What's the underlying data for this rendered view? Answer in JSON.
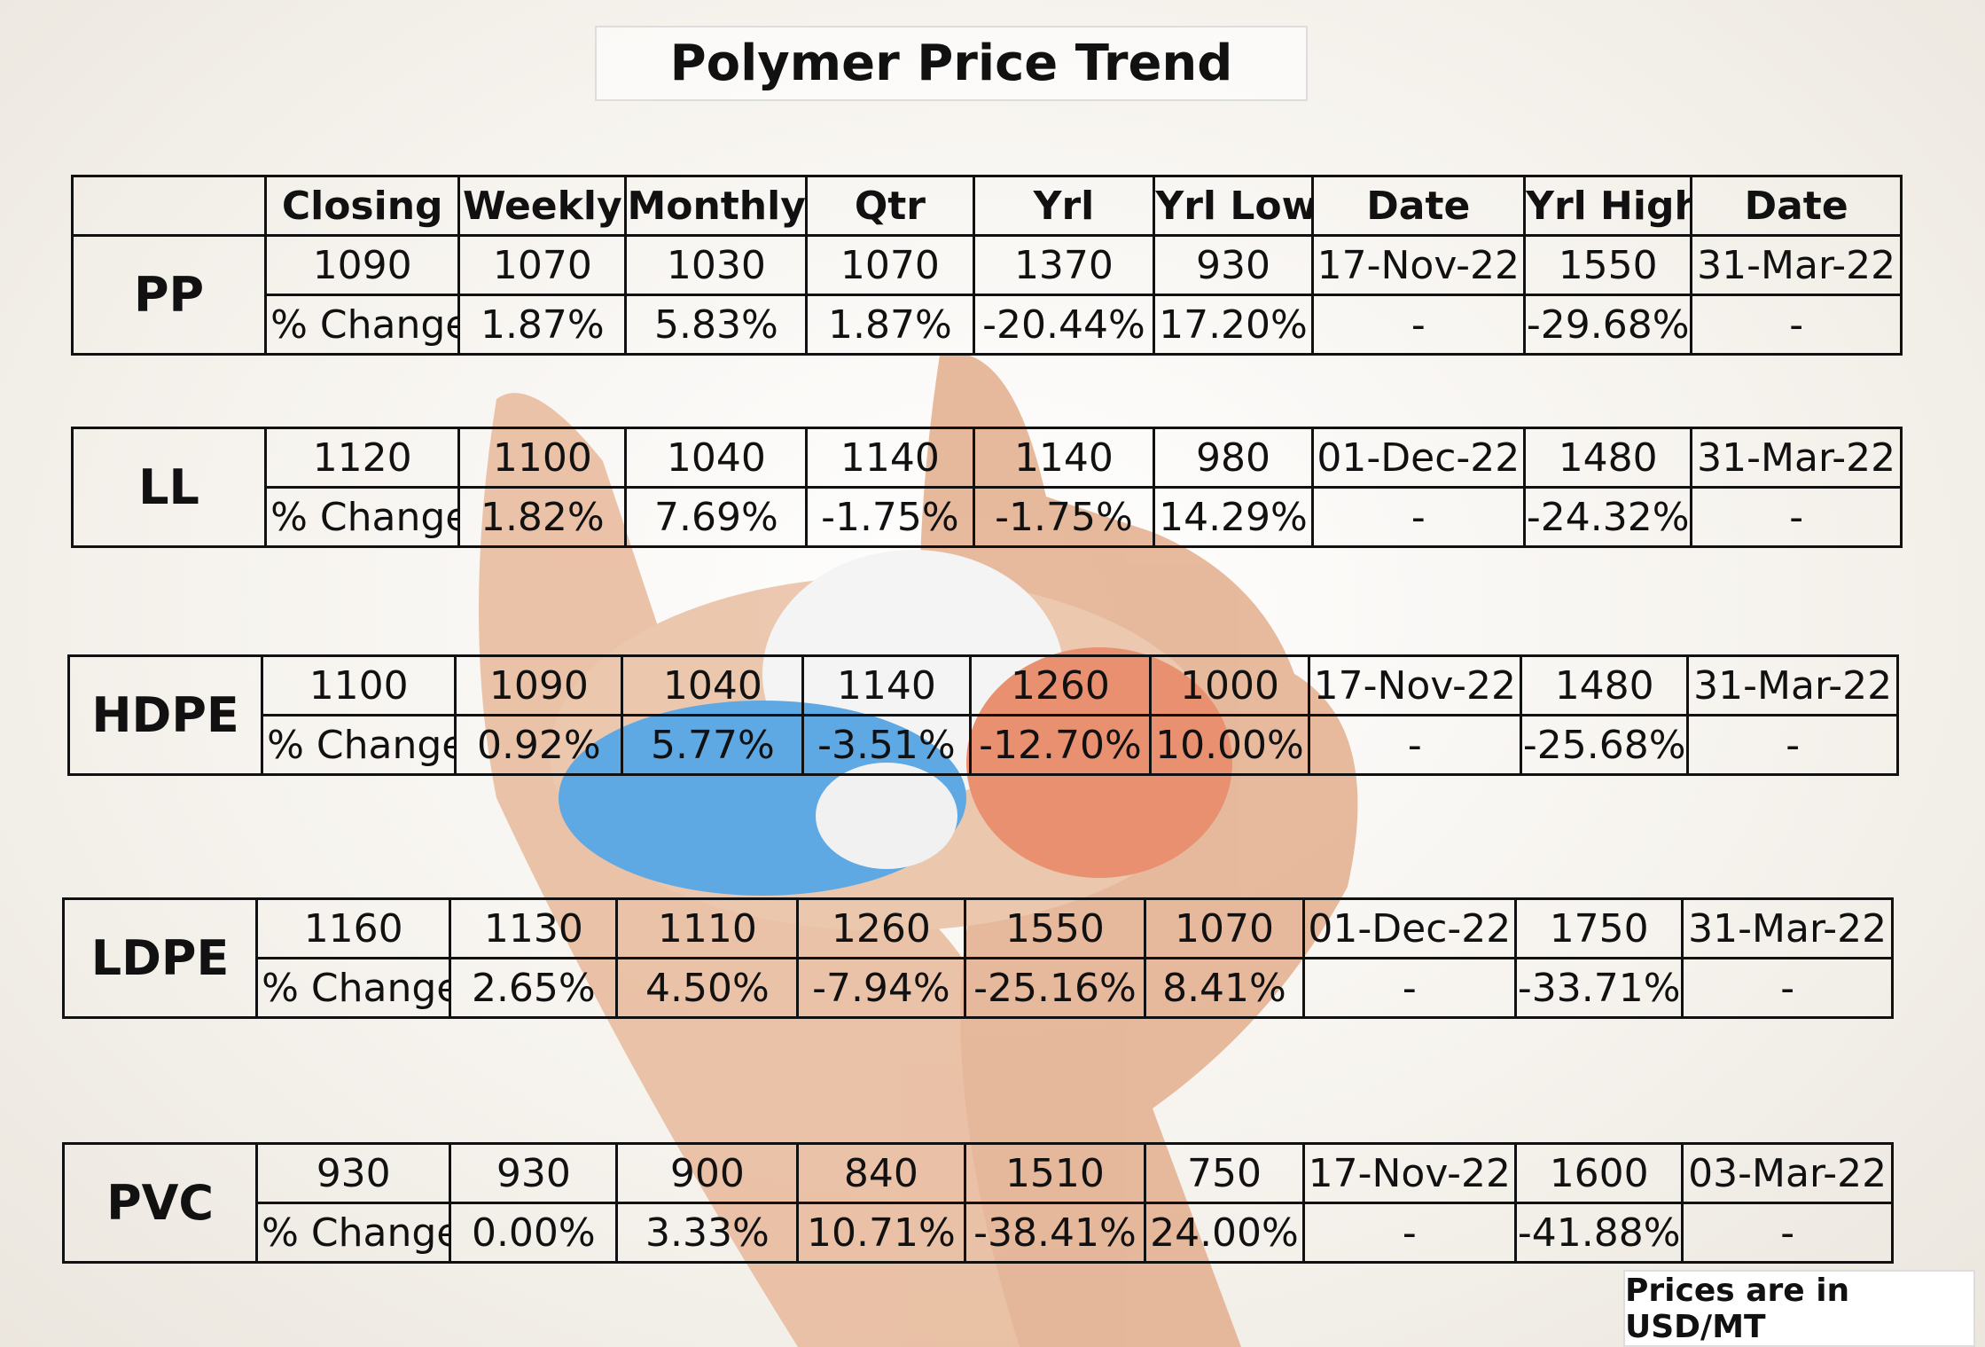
{
  "title": "Polymer Price Trend",
  "header": [
    "Closing",
    "Weekly",
    "Monthly",
    "Qtr",
    "Yrl",
    "Yrl Low",
    "Date",
    "Yrl High",
    "Date"
  ],
  "tables": [
    {
      "name": "PP",
      "prices": [
        "1090",
        "1070",
        "1030",
        "1070",
        "1370",
        "930",
        "17-Nov-22",
        "1550",
        "31-Mar-22"
      ],
      "changes": [
        "% Change",
        "1.87%",
        "5.83%",
        "1.87%",
        "-20.44%",
        "17.20%",
        "-",
        "-29.68%",
        "-"
      ]
    },
    {
      "name": "LL",
      "prices": [
        "1120",
        "1100",
        "1040",
        "1140",
        "1140",
        "980",
        "01-Dec-22",
        "1480",
        "31-Mar-22"
      ],
      "changes": [
        "% Change",
        "1.82%",
        "7.69%",
        "-1.75%",
        "-1.75%",
        "14.29%",
        "-",
        "-24.32%",
        "-"
      ]
    },
    {
      "name": "HDPE",
      "prices": [
        "1100",
        "1090",
        "1040",
        "1140",
        "1260",
        "1000",
        "17-Nov-22",
        "1480",
        "31-Mar-22"
      ],
      "changes": [
        "% Change",
        "0.92%",
        "5.77%",
        "-3.51%",
        "-12.70%",
        "10.00%",
        "-",
        "-25.68%",
        "-"
      ]
    },
    {
      "name": "LDPE",
      "prices": [
        "1160",
        "1130",
        "1110",
        "1260",
        "1550",
        "1070",
        "01-Dec-22",
        "1750",
        "31-Mar-22"
      ],
      "changes": [
        "% Change",
        "2.65%",
        "4.50%",
        "-7.94%",
        "-25.16%",
        "8.41%",
        "-",
        "-33.71%",
        "-"
      ]
    },
    {
      "name": "PVC",
      "prices": [
        "930",
        "930",
        "900",
        "840",
        "1510",
        "750",
        "17-Nov-22",
        "1600",
        "03-Mar-22"
      ],
      "changes": [
        "% Change",
        "0.00%",
        "3.33%",
        "10.71%",
        "-38.41%",
        "24.00%",
        "-",
        "-41.88%",
        "-"
      ]
    }
  ],
  "footnote": "Prices are in USD/MT"
}
